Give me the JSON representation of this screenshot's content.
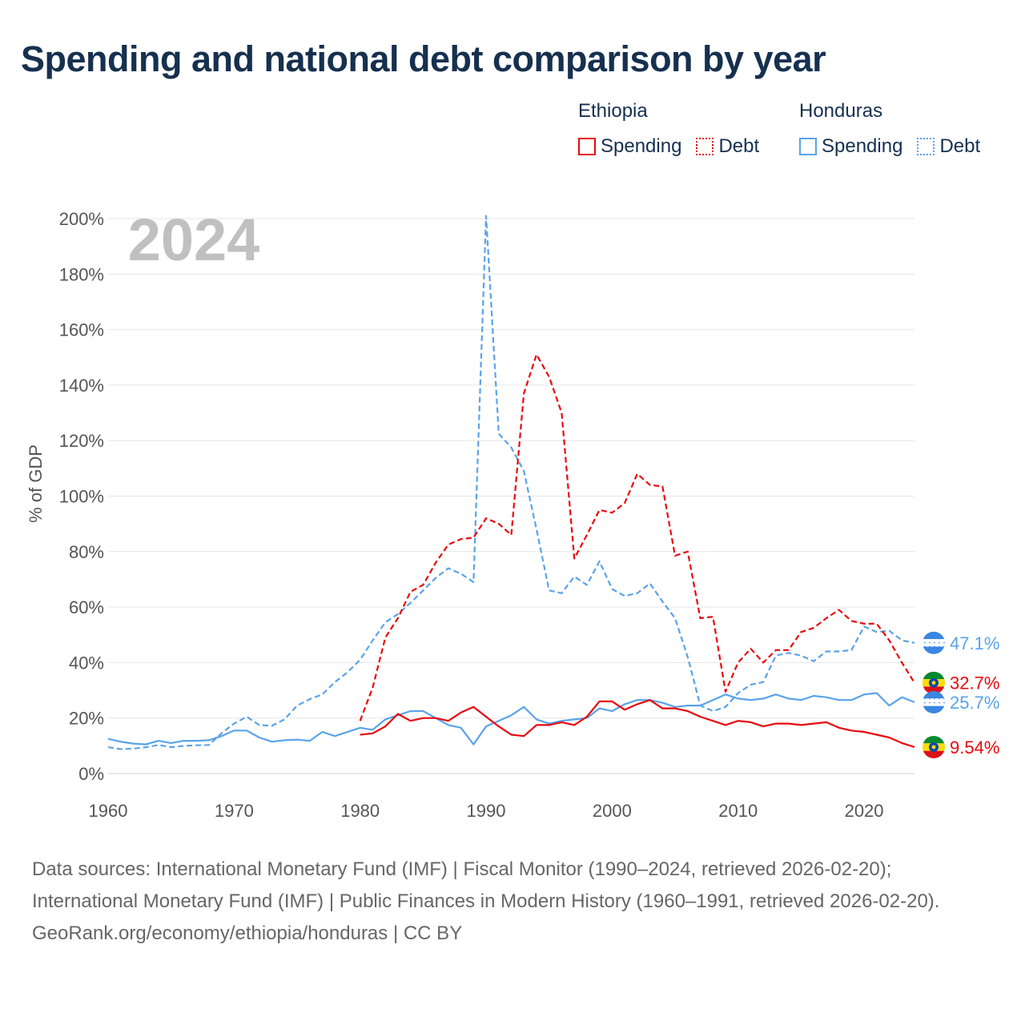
{
  "title": "Spending and national debt comparison by year",
  "legend": {
    "groups": [
      {
        "country": "Ethiopia",
        "color": "#e8090e",
        "spending_label": "Spending",
        "debt_label": "Debt"
      },
      {
        "country": "Honduras",
        "color": "#5aa3e8",
        "spending_label": "Spending",
        "debt_label": "Debt"
      }
    ]
  },
  "footer": {
    "sources": "Data sources: International Monetary Fund (IMF) | Fiscal Monitor (1990–2024, retrieved 2026-02-20); International Monetary Fund (IMF) | Public Finances in Modern History (1960–1991, retrieved 2026-02-20).",
    "credit": "GeoRank.org/economy/ethiopia/honduras | CC BY"
  },
  "chart_data": {
    "type": "line",
    "year_watermark": "2024",
    "ylabel": "% of GDP",
    "xlabel": "",
    "xlim": [
      1960,
      2024
    ],
    "ylim": [
      0,
      200
    ],
    "x_ticks": [
      "1960",
      "1970",
      "1980",
      "1990",
      "2000",
      "2010",
      "2020"
    ],
    "y_ticks": [
      "0%",
      "20%",
      "40%",
      "60%",
      "80%",
      "100%",
      "120%",
      "140%",
      "160%",
      "180%",
      "200%"
    ],
    "grid": "horizontal",
    "end_labels": [
      {
        "series": "Honduras Debt",
        "text": "47.1%",
        "value": 47.1,
        "color": "#5aa3e8",
        "flag": "honduras"
      },
      {
        "series": "Ethiopia Debt",
        "text": "32.7%",
        "value": 32.7,
        "color": "#e8090e",
        "flag": "ethiopia"
      },
      {
        "series": "Honduras Spending",
        "text": "25.7%",
        "value": 25.7,
        "color": "#5aa3e8",
        "flag": "honduras"
      },
      {
        "series": "Ethiopia Spending",
        "text": "9.54%",
        "value": 9.54,
        "color": "#e8090e",
        "flag": "ethiopia"
      }
    ],
    "series": [
      {
        "name": "Honduras Debt",
        "country": "Honduras",
        "kind": "debt",
        "color": "#5aa3e8",
        "dashed": true,
        "start_year": 1960,
        "values": [
          9.5,
          8.8,
          9.0,
          9.5,
          10.3,
          9.5,
          10.0,
          10.2,
          10.3,
          14.5,
          18,
          20.5,
          17.5,
          17.2,
          19.5,
          24.5,
          26.8,
          28.5,
          33,
          36.5,
          41,
          48,
          54.5,
          57.5,
          61.5,
          66,
          70.5,
          74,
          72,
          69,
          201,
          122.5,
          117.5,
          109,
          88,
          66,
          65,
          71,
          68,
          76.5,
          66.5,
          64,
          65,
          68.5,
          62,
          56,
          42,
          24.5,
          22.5,
          24,
          29,
          32,
          33,
          42.5,
          43.5,
          42.5,
          40.5,
          44,
          44,
          44.5,
          53,
          51,
          51.5,
          48,
          47.1
        ]
      },
      {
        "name": "Ethiopia Debt",
        "country": "Ethiopia",
        "kind": "debt",
        "color": "#e8090e",
        "dashed": true,
        "start_year": 1980,
        "values": [
          19,
          31,
          49,
          56,
          65.5,
          68,
          76,
          82.5,
          84.5,
          85,
          92,
          90,
          86,
          137,
          151,
          143,
          130,
          77.5,
          86,
          95,
          94,
          97.5,
          108,
          104,
          103.5,
          78.5,
          80,
          56,
          56.5,
          29.5,
          40,
          45,
          40,
          44.5,
          44.5,
          51,
          52.5,
          56,
          59,
          55,
          54,
          54,
          48,
          40,
          32.7
        ]
      },
      {
        "name": "Honduras Spending",
        "country": "Honduras",
        "kind": "spending",
        "color": "#5aa3e8",
        "dashed": false,
        "start_year": 1960,
        "values": [
          12.5,
          11.5,
          10.8,
          10.5,
          11.8,
          11,
          11.8,
          11.8,
          12,
          13.5,
          15.5,
          15.5,
          13,
          11.5,
          12,
          12.2,
          11.8,
          15,
          13.5,
          15,
          16.5,
          15.8,
          19.5,
          21,
          22.5,
          22.5,
          20,
          17.5,
          16.5,
          10.5,
          17,
          19,
          21,
          24,
          19.5,
          18,
          19,
          19.5,
          20,
          23.5,
          22.5,
          25,
          26.5,
          26.5,
          25.5,
          24,
          24.5,
          24.5,
          26.5,
          28.5,
          27,
          26.5,
          27,
          28.5,
          27,
          26.5,
          28,
          27.5,
          26.5,
          26.5,
          28.5,
          29,
          24.5,
          27.5,
          25.7
        ]
      },
      {
        "name": "Ethiopia Spending",
        "country": "Ethiopia",
        "kind": "spending",
        "color": "#e8090e",
        "dashed": false,
        "start_year": 1980,
        "values": [
          14,
          14.5,
          17,
          21.5,
          19,
          20,
          20,
          19,
          22,
          24,
          20.5,
          17,
          14,
          13.5,
          17.5,
          17.5,
          18.5,
          17.5,
          20.5,
          26,
          26,
          23,
          25,
          26.5,
          23.5,
          23.5,
          22.5,
          20.5,
          19,
          17.5,
          19,
          18.5,
          17,
          18,
          18,
          17.5,
          18,
          18.5,
          16.5,
          15.5,
          15,
          14,
          13,
          11,
          9.54
        ]
      }
    ]
  }
}
